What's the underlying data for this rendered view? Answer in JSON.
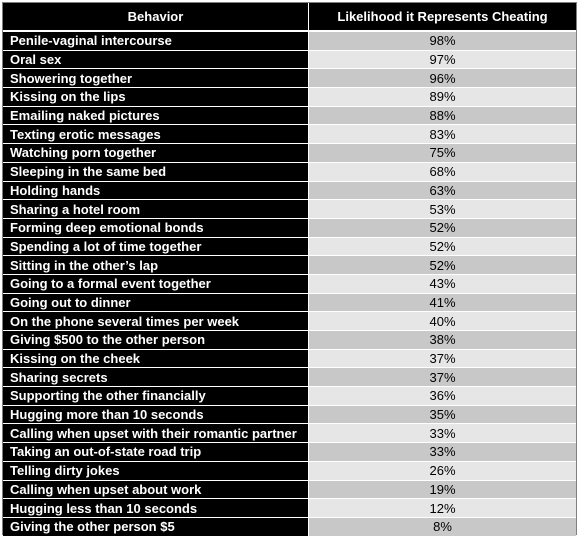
{
  "chart_data": {
    "type": "table",
    "columns": [
      "Behavior",
      "Likelihood it Represents Cheating"
    ],
    "rows": [
      {
        "behavior": "Penile-vaginal intercourse",
        "likelihood": "98%"
      },
      {
        "behavior": "Oral sex",
        "likelihood": "97%"
      },
      {
        "behavior": "Showering together",
        "likelihood": "96%"
      },
      {
        "behavior": "Kissing on the lips",
        "likelihood": "89%"
      },
      {
        "behavior": "Emailing naked pictures",
        "likelihood": "88%"
      },
      {
        "behavior": "Texting erotic messages",
        "likelihood": "83%"
      },
      {
        "behavior": "Watching porn together",
        "likelihood": "75%"
      },
      {
        "behavior": "Sleeping in the same bed",
        "likelihood": "68%"
      },
      {
        "behavior": "Holding hands",
        "likelihood": "63%"
      },
      {
        "behavior": "Sharing a hotel room",
        "likelihood": "53%"
      },
      {
        "behavior": "Forming deep emotional bonds",
        "likelihood": "52%"
      },
      {
        "behavior": "Spending a lot of time together",
        "likelihood": "52%"
      },
      {
        "behavior": "Sitting in the other’s lap",
        "likelihood": "52%"
      },
      {
        "behavior": "Going to a formal event together",
        "likelihood": "43%"
      },
      {
        "behavior": "Going out to dinner",
        "likelihood": "41%"
      },
      {
        "behavior": "On the phone several times per week",
        "likelihood": "40%"
      },
      {
        "behavior": "Giving $500 to the other person",
        "likelihood": "38%"
      },
      {
        "behavior": "Kissing on the cheek",
        "likelihood": "37%"
      },
      {
        "behavior": "Sharing secrets",
        "likelihood": "37%"
      },
      {
        "behavior": "Supporting the other financially",
        "likelihood": "36%"
      },
      {
        "behavior": "Hugging more than 10 seconds",
        "likelihood": "35%"
      },
      {
        "behavior": "Calling when upset with their romantic partner",
        "likelihood": "33%"
      },
      {
        "behavior": "Taking an out-of-state road trip",
        "likelihood": "33%"
      },
      {
        "behavior": "Telling dirty jokes",
        "likelihood": "26%"
      },
      {
        "behavior": "Calling when upset about work",
        "likelihood": "19%"
      },
      {
        "behavior": "Hugging less than 10 seconds",
        "likelihood": "12%"
      },
      {
        "behavior": "Giving the other person $5",
        "likelihood": "8%"
      }
    ],
    "colors": {
      "header_bg": "#000000",
      "label_bg": "#000000",
      "label_text": "#ffffff",
      "value_row_dark": "#c8c8c8",
      "value_row_light": "#e6e6e6"
    }
  }
}
